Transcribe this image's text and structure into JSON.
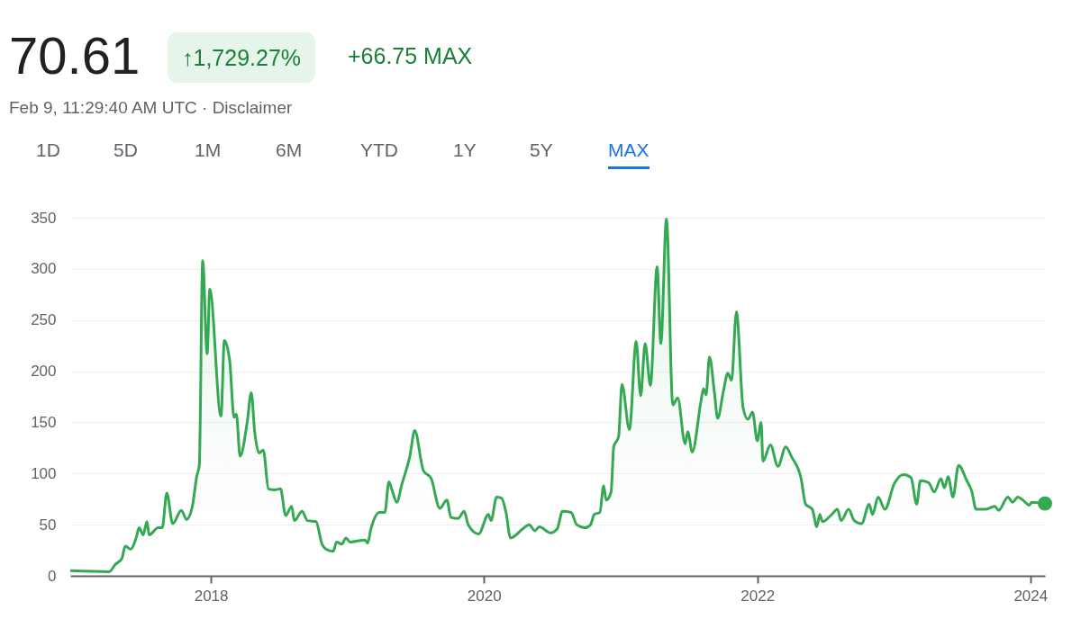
{
  "chart_data": {
    "type": "area",
    "title": "70.61",
    "subtitle": "Feb 9, 11:29:40 AM UTC · Disclaimer",
    "annotations": [
      "↑1,729.27%",
      "+66.75 MAX",
      "1D",
      "5D",
      "1M",
      "6M",
      "YTD",
      "1Y",
      "5Y",
      "MAX"
    ],
    "x": [
      "2016-12-21",
      "2017-04-04",
      "2017-04-20",
      "2017-05-08",
      "2017-05-17",
      "2017-05-31",
      "2017-06-16",
      "2017-06-23",
      "2017-07-04",
      "2017-07-14",
      "2017-07-20",
      "2017-08-13",
      "2017-08-24",
      "2017-09-05",
      "2017-09-21",
      "2017-10-14",
      "2017-10-28",
      "2017-11-13",
      "2017-11-24",
      "2017-12-01",
      "2017-12-10",
      "2017-12-22",
      "2017-12-29",
      "2018-01-28",
      "2018-02-06",
      "2018-02-20",
      "2018-03-04",
      "2018-03-10",
      "2018-03-20",
      "2018-04-08",
      "2018-04-19",
      "2018-04-28",
      "2018-05-10",
      "2018-05-21",
      "2018-06-04",
      "2018-06-20",
      "2018-07-06",
      "2018-07-20",
      "2018-08-05",
      "2018-08-12",
      "2018-09-02",
      "2018-09-16",
      "2018-10-09",
      "2018-10-25",
      "2018-11-05",
      "2018-11-24",
      "2018-12-03",
      "2018-12-17",
      "2018-12-28",
      "2019-01-08",
      "2019-02-17",
      "2019-02-24",
      "2019-03-05",
      "2019-03-28",
      "2019-04-11",
      "2019-04-22",
      "2019-05-01",
      "2019-05-13",
      "2019-05-27",
      "2019-06-17",
      "2019-06-30",
      "2019-07-23",
      "2019-08-13",
      "2019-09-05",
      "2019-09-24",
      "2019-10-05",
      "2019-10-24",
      "2019-11-09",
      "2019-11-20",
      "2019-12-18",
      "2020-01-13",
      "2020-01-20",
      "2020-02-04",
      "2020-02-17",
      "2020-02-29",
      "2020-03-12",
      "2020-04-14",
      "2020-05-01",
      "2020-05-16",
      "2020-05-28",
      "2020-06-27",
      "2020-07-15",
      "2020-07-29",
      "2020-08-21",
      "2020-09-05",
      "2020-09-27",
      "2020-10-12",
      "2020-10-22",
      "2020-11-06",
      "2020-11-16",
      "2020-11-23",
      "2020-12-06",
      "2020-12-13",
      "2020-12-26",
      "2021-01-04",
      "2021-01-24",
      "2021-02-11",
      "2021-02-23",
      "2021-03-07",
      "2021-03-21",
      "2021-04-08",
      "2021-04-18",
      "2021-05-03",
      "2021-05-20",
      "2021-06-02",
      "2021-06-22",
      "2021-06-29",
      "2021-07-11",
      "2021-08-03",
      "2021-08-10",
      "2021-08-17",
      "2021-08-26",
      "2021-09-08",
      "2021-09-17",
      "2021-10-02",
      "2021-10-14",
      "2021-10-24",
      "2021-11-06",
      "2021-11-24",
      "2021-12-07",
      "2021-12-19",
      "2022-01-01",
      "2022-01-11",
      "2022-01-16",
      "2022-02-05",
      "2022-02-25",
      "2022-03-18",
      "2022-04-03",
      "2022-04-28",
      "2022-05-10",
      "2022-05-28",
      "2022-06-09",
      "2022-06-17",
      "2022-06-24",
      "2022-07-19",
      "2022-08-03",
      "2022-08-13",
      "2022-09-02",
      "2022-09-17",
      "2022-10-07",
      "2022-10-27",
      "2022-11-05",
      "2022-11-20",
      "2022-12-08",
      "2023-01-02",
      "2023-01-27",
      "2023-02-16",
      "2023-03-03",
      "2023-03-13",
      "2023-04-04",
      "2023-04-19",
      "2023-05-07",
      "2023-05-16",
      "2023-05-26",
      "2023-06-08",
      "2023-06-23",
      "2023-07-15",
      "2023-07-28",
      "2023-08-09",
      "2023-09-03",
      "2023-09-28",
      "2023-10-08",
      "2023-11-02",
      "2023-11-14",
      "2023-11-29",
      "2023-12-12",
      "2023-12-29",
      "2024-01-05",
      "2024-02-09"
    ],
    "series": [
      {
        "color": "#34a853",
        "values": [
          5,
          4,
          11,
          17,
          29,
          26,
          38,
          47,
          40,
          53,
          40,
          47,
          47,
          81,
          51,
          64,
          55,
          69,
          97,
          108,
          308,
          217,
          280,
          156,
          230,
          211,
          155,
          158,
          117,
          150,
          179,
          141,
          120,
          123,
          85,
          84,
          85,
          59,
          68,
          54,
          63,
          54,
          53,
          31,
          26,
          24,
          33,
          31,
          37,
          33,
          35,
          32,
          46,
          62,
          62,
          92,
          83,
          72,
          90,
          117,
          142,
          103,
          95,
          66,
          74,
          57,
          56,
          63,
          50,
          41,
          60,
          54,
          77,
          76,
          62,
          37,
          46,
          50,
          44,
          48,
          42,
          46,
          63,
          62,
          50,
          47,
          50,
          60,
          62,
          88,
          74,
          82,
          126,
          136,
          187,
          143,
          229,
          176,
          227,
          186,
          302,
          227,
          349,
          167,
          174,
          129,
          141,
          121,
          170,
          183,
          177,
          214,
          180,
          154,
          180,
          198,
          191,
          258,
          164,
          153,
          160,
          132,
          150,
          112,
          128,
          107,
          126,
          116,
          95,
          70,
          65,
          48,
          60,
          53,
          60,
          65,
          54,
          65,
          54,
          51,
          70,
          60,
          77,
          65,
          90,
          99,
          96,
          70,
          93,
          91,
          82,
          95,
          86,
          97,
          77,
          108,
          93,
          83,
          65,
          65,
          68,
          64,
          77,
          72,
          77,
          74,
          69,
          72,
          70.61
        ]
      }
    ],
    "xlim": [
      "2016-12-21",
      "2024-02-09"
    ],
    "xticks": [
      "2018",
      "2020",
      "2022",
      "2024"
    ],
    "ylim": [
      0,
      350
    ],
    "yticks": [
      0,
      50,
      100,
      150,
      200,
      250,
      300,
      350
    ],
    "grid": "y"
  }
}
